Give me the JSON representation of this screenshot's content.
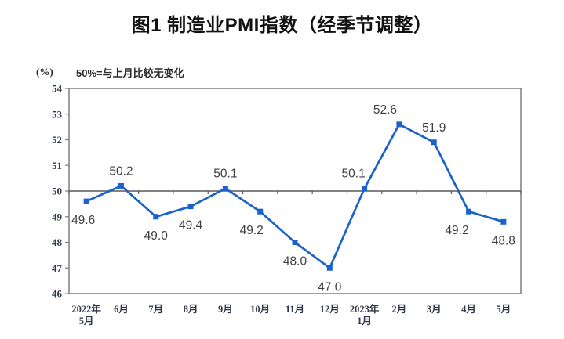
{
  "title": "图1 制造业PMI指数（经季节调整）",
  "chart_data": {
    "type": "line",
    "title": "图1 制造业PMI指数（经季节调整）",
    "unit_label": "(%)",
    "annotation": "50%=与上月比较无变化",
    "categories": [
      "2022年\n5月",
      "6月",
      "7月",
      "8月",
      "9月",
      "10月",
      "11月",
      "12月",
      "2023年\n1月",
      "2月",
      "3月",
      "4月",
      "5月"
    ],
    "series": [
      {
        "name": "制造业PMI",
        "values": [
          49.6,
          50.2,
          49.0,
          49.4,
          50.1,
          49.2,
          48.0,
          47.0,
          50.1,
          52.6,
          51.9,
          49.2,
          48.8
        ]
      }
    ],
    "point_label_positions": [
      "below",
      "above",
      "below",
      "below",
      "above",
      "below",
      "below",
      "below",
      "above",
      "above",
      "above",
      "below",
      "below"
    ],
    "point_label_dx": [
      -4,
      0,
      0,
      0,
      0,
      -11,
      0,
      0,
      -14,
      -18,
      0,
      -15,
      0
    ],
    "ylim": [
      46,
      54
    ],
    "ytick_step": 1,
    "reference_line_value": 50,
    "grid": false,
    "legend_position": "none",
    "marker": "square",
    "colors": {
      "line": "#1b62cb",
      "marker": "#1b62cb",
      "point_label": "#3f3f3f",
      "axis_label": "#30394a",
      "plot_border": "#7f7f7f",
      "reference_line": "#595959",
      "background": "#ffffff"
    }
  }
}
